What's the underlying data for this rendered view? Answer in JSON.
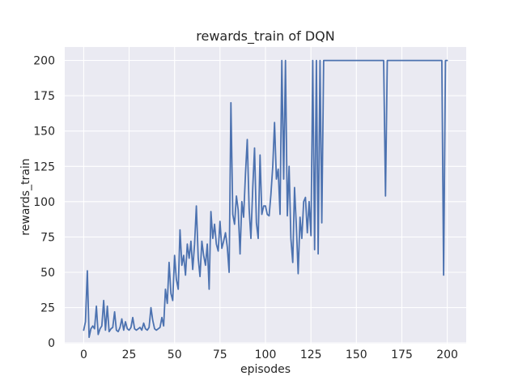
{
  "figure": {
    "title": "rewards_train of DQN",
    "xlabel": "episodes",
    "ylabel": "rewards_train"
  },
  "chart_data": {
    "type": "line",
    "title": "rewards_train of DQN",
    "xlabel": "episodes",
    "ylabel": "rewards_train",
    "x_ticks": [
      0,
      25,
      50,
      75,
      100,
      125,
      150,
      175,
      200
    ],
    "y_ticks": [
      0,
      25,
      50,
      75,
      100,
      125,
      150,
      175,
      200
    ],
    "xlim": [
      -10.4,
      210.4
    ],
    "ylim": [
      -0.5,
      209.5
    ],
    "grid": true,
    "legend": "none",
    "style": "seaborn-darkgrid",
    "series": [
      {
        "name": "rewards_train",
        "x_start": 0,
        "x_step": 1,
        "values": [
          9,
          15,
          51,
          4,
          10,
          12,
          10,
          26,
          6,
          10,
          12,
          30,
          9,
          26,
          8,
          10,
          11,
          22,
          9,
          8,
          11,
          17,
          9,
          15,
          10,
          9,
          11,
          18,
          10,
          9,
          10,
          11,
          9,
          14,
          10,
          9,
          11,
          25,
          16,
          10,
          9,
          10,
          11,
          18,
          12,
          38,
          28,
          57,
          35,
          30,
          62,
          45,
          38,
          80,
          55,
          62,
          48,
          70,
          60,
          72,
          52,
          70,
          97,
          60,
          47,
          72,
          62,
          55,
          70,
          38,
          93,
          74,
          84,
          70,
          65,
          86,
          67,
          72,
          78,
          68,
          50,
          170,
          91,
          84,
          104,
          94,
          63,
          100,
          89,
          120,
          144,
          95,
          74,
          110,
          138,
          85,
          74,
          133,
          91,
          97,
          97,
          91,
          90,
          105,
          125,
          156,
          116,
          123,
          91,
          200,
          116,
          200,
          90,
          125,
          74,
          57,
          110,
          82,
          49,
          89,
          74,
          100,
          103,
          78,
          100,
          76,
          200,
          66,
          200,
          63,
          200,
          85,
          200,
          200,
          200,
          200,
          200,
          200,
          200,
          200,
          200,
          200,
          200,
          200,
          200,
          200,
          200,
          200,
          200,
          200,
          200,
          200,
          200,
          200,
          200,
          200,
          200,
          200,
          200,
          200,
          200,
          200,
          200,
          200,
          200,
          200,
          104,
          200,
          200,
          200,
          200,
          200,
          200,
          200,
          200,
          200,
          200,
          200,
          200,
          200,
          200,
          200,
          200,
          200,
          200,
          200,
          200,
          200,
          200,
          200,
          200,
          200,
          200,
          200,
          200,
          200,
          200,
          200,
          48,
          200,
          200
        ]
      }
    ],
    "colors": {
      "line": "#4c72b0",
      "axes_background": "#eaeaf2",
      "grid": "#ffffff",
      "figure_background": "#ffffff",
      "text": "#262626"
    }
  }
}
